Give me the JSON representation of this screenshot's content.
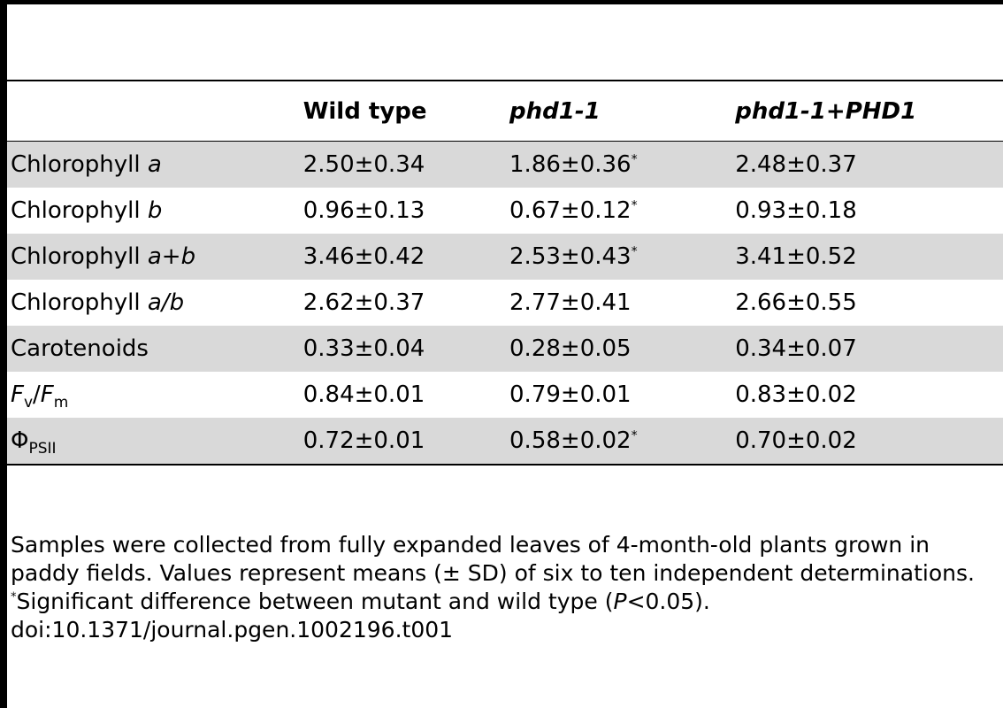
{
  "table": {
    "header": {
      "col0": "",
      "wild_type": "Wild type",
      "phd1": "phd1-1",
      "complement_a": "phd1-1",
      "complement_plus": "+",
      "complement_b": "PHD1"
    },
    "rows": [
      {
        "label_pre": "Chlorophyll ",
        "label_it": "a",
        "label_post": "",
        "wt": "2.50±0.34",
        "mut": "1.86±0.36",
        "mut_sig": "*",
        "comp": "2.48±0.37"
      },
      {
        "label_pre": "Chlorophyll ",
        "label_it": "b",
        "label_post": "",
        "wt": "0.96±0.13",
        "mut": "0.67±0.12",
        "mut_sig": "*",
        "comp": "0.93±0.18"
      },
      {
        "label_pre": "Chlorophyll ",
        "label_it": "a+b",
        "label_post": "",
        "wt": "3.46±0.42",
        "mut": "2.53±0.43",
        "mut_sig": "*",
        "comp": "3.41±0.52"
      },
      {
        "label_pre": "Chlorophyll ",
        "label_it": "a/b",
        "label_post": "",
        "wt": "2.62±0.37",
        "mut": "2.77±0.41",
        "mut_sig": "",
        "comp": "2.66±0.55"
      },
      {
        "label_pre": "Carotenoids",
        "label_it": "",
        "label_post": "",
        "wt": "0.33±0.04",
        "mut": "0.28±0.05",
        "mut_sig": "",
        "comp": "0.34±0.07"
      },
      {
        "fv_F1": "F",
        "fv_s1": "v",
        "fv_slash": "/",
        "fv_F2": "F",
        "fv_s2": "m",
        "wt": "0.84±0.01",
        "mut": "0.79±0.01",
        "mut_sig": "",
        "comp": "0.83±0.02"
      },
      {
        "phi": "Φ",
        "phi_sub": "PSII",
        "wt": "0.72±0.01",
        "mut": "0.58±0.02",
        "mut_sig": "*",
        "comp": "0.70±0.02"
      }
    ]
  },
  "footnotes": {
    "note1": "Samples were collected from fully expanded leaves of 4-month-old plants grown in paddy fields. Values represent means (± SD) of six to ten independent determinations.",
    "note2_ast": "*",
    "note2_pre": "Significant difference between mutant and wild type (",
    "note2_p": "P",
    "note2_post": "<0.05).",
    "doi": "doi:10.1371/journal.pgen.1002196.t001"
  }
}
